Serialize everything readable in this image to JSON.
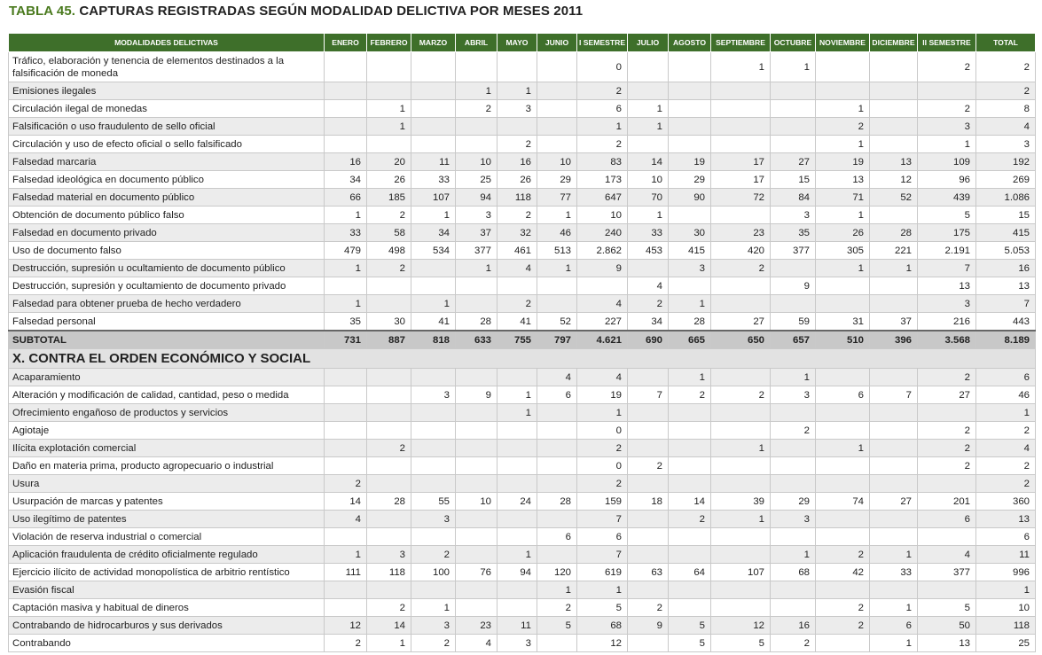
{
  "title": {
    "number": "TABLA 45.",
    "text": "CAPTURAS REGISTRADAS SEGÚN MODALIDAD DELICTIVA POR MESES 2011"
  },
  "columns": [
    "MODALIDADES DELICTIVAS",
    "ENERO",
    "FEBRERO",
    "MARZO",
    "ABRIL",
    "MAYO",
    "JUNIO",
    "I SEMESTRE",
    "JULIO",
    "AGOSTO",
    "SEPTIEMBRE",
    "OCTUBRE",
    "NOVIEMBRE",
    "DICIEMBRE",
    "II SEMESTRE",
    "TOTAL"
  ],
  "rows": [
    {
      "type": "data",
      "label": "Tráfico, elaboración y tenencia de elementos destinados a la falsificación de moneda",
      "values": [
        "",
        "",
        "",
        "",
        "",
        "",
        "0",
        "",
        "",
        "1",
        "1",
        "",
        "",
        "2",
        "2"
      ]
    },
    {
      "type": "data",
      "label": "Emisiones ilegales",
      "values": [
        "",
        "",
        "",
        "1",
        "1",
        "",
        "2",
        "",
        "",
        "",
        "",
        "",
        "",
        "",
        "2"
      ]
    },
    {
      "type": "data",
      "label": "Circulación ilegal de monedas",
      "values": [
        "",
        "1",
        "",
        "2",
        "3",
        "",
        "6",
        "1",
        "",
        "",
        "",
        "1",
        "",
        "2",
        "8"
      ]
    },
    {
      "type": "data",
      "label": "Falsificación o uso fraudulento de sello oficial",
      "values": [
        "",
        "1",
        "",
        "",
        "",
        "",
        "1",
        "1",
        "",
        "",
        "",
        "2",
        "",
        "3",
        "4"
      ]
    },
    {
      "type": "data",
      "label": "Circulación y uso de efecto oficial o sello falsificado",
      "values": [
        "",
        "",
        "",
        "",
        "2",
        "",
        "2",
        "",
        "",
        "",
        "",
        "1",
        "",
        "1",
        "3"
      ]
    },
    {
      "type": "data",
      "label": "Falsedad marcaria",
      "values": [
        "16",
        "20",
        "11",
        "10",
        "16",
        "10",
        "83",
        "14",
        "19",
        "17",
        "27",
        "19",
        "13",
        "109",
        "192"
      ]
    },
    {
      "type": "data",
      "label": "Falsedad ideológica en documento público",
      "values": [
        "34",
        "26",
        "33",
        "25",
        "26",
        "29",
        "173",
        "10",
        "29",
        "17",
        "15",
        "13",
        "12",
        "96",
        "269"
      ]
    },
    {
      "type": "data",
      "label": "Falsedad material en documento público",
      "values": [
        "66",
        "185",
        "107",
        "94",
        "118",
        "77",
        "647",
        "70",
        "90",
        "72",
        "84",
        "71",
        "52",
        "439",
        "1.086"
      ]
    },
    {
      "type": "data",
      "label": "Obtención de documento público falso",
      "values": [
        "1",
        "2",
        "1",
        "3",
        "2",
        "1",
        "10",
        "1",
        "",
        "",
        "3",
        "1",
        "",
        "5",
        "15"
      ]
    },
    {
      "type": "data",
      "label": "Falsedad en documento privado",
      "values": [
        "33",
        "58",
        "34",
        "37",
        "32",
        "46",
        "240",
        "33",
        "30",
        "23",
        "35",
        "26",
        "28",
        "175",
        "415"
      ]
    },
    {
      "type": "data",
      "label": "Uso de documento falso",
      "values": [
        "479",
        "498",
        "534",
        "377",
        "461",
        "513",
        "2.862",
        "453",
        "415",
        "420",
        "377",
        "305",
        "221",
        "2.191",
        "5.053"
      ]
    },
    {
      "type": "data",
      "label": "Destrucción, supresión u ocultamiento de documento público",
      "values": [
        "1",
        "2",
        "",
        "1",
        "4",
        "1",
        "9",
        "",
        "3",
        "2",
        "",
        "1",
        "1",
        "7",
        "16"
      ]
    },
    {
      "type": "data",
      "label": "Destrucción, supresión y ocultamiento de documento privado",
      "values": [
        "",
        "",
        "",
        "",
        "",
        "",
        "",
        "4",
        "",
        "",
        "9",
        "",
        "",
        "13",
        "13"
      ]
    },
    {
      "type": "data",
      "label": "Falsedad para obtener prueba de hecho verdadero",
      "values": [
        "1",
        "",
        "1",
        "",
        "2",
        "",
        "4",
        "2",
        "1",
        "",
        "",
        "",
        "",
        "3",
        "7"
      ]
    },
    {
      "type": "data",
      "label": "Falsedad personal",
      "values": [
        "35",
        "30",
        "41",
        "28",
        "41",
        "52",
        "227",
        "34",
        "28",
        "27",
        "59",
        "31",
        "37",
        "216",
        "443"
      ]
    },
    {
      "type": "subtotal",
      "label": "SUBTOTAL",
      "values": [
        "731",
        "887",
        "818",
        "633",
        "755",
        "797",
        "4.621",
        "690",
        "665",
        "650",
        "657",
        "510",
        "396",
        "3.568",
        "8.189"
      ]
    },
    {
      "type": "section",
      "label": "X. CONTRA EL ORDEN ECONÓMICO Y SOCIAL"
    },
    {
      "type": "data",
      "label": "Acaparamiento",
      "values": [
        "",
        "",
        "",
        "",
        "",
        "4",
        "4",
        "",
        "1",
        "",
        "1",
        "",
        "",
        "2",
        "6"
      ]
    },
    {
      "type": "data",
      "label": "Alteración y modificación de calidad, cantidad, peso o medida",
      "values": [
        "",
        "",
        "3",
        "9",
        "1",
        "6",
        "19",
        "7",
        "2",
        "2",
        "3",
        "6",
        "7",
        "27",
        "46"
      ]
    },
    {
      "type": "data",
      "label": "Ofrecimiento engañoso de productos y servicios",
      "values": [
        "",
        "",
        "",
        "",
        "1",
        "",
        "1",
        "",
        "",
        "",
        "",
        "",
        "",
        "",
        "1"
      ]
    },
    {
      "type": "data",
      "label": "Agiotaje",
      "values": [
        "",
        "",
        "",
        "",
        "",
        "",
        "0",
        "",
        "",
        "",
        "2",
        "",
        "",
        "2",
        "2"
      ]
    },
    {
      "type": "data",
      "label": "Ilícita explotación comercial",
      "values": [
        "",
        "2",
        "",
        "",
        "",
        "",
        "2",
        "",
        "",
        "1",
        "",
        "1",
        "",
        "2",
        "4"
      ]
    },
    {
      "type": "data",
      "label": "Daño en materia prima, producto agropecuario o industrial",
      "values": [
        "",
        "",
        "",
        "",
        "",
        "",
        "0",
        "2",
        "",
        "",
        "",
        "",
        "",
        "2",
        "2"
      ]
    },
    {
      "type": "data",
      "label": "Usura",
      "values": [
        "2",
        "",
        "",
        "",
        "",
        "",
        "2",
        "",
        "",
        "",
        "",
        "",
        "",
        "",
        "2"
      ]
    },
    {
      "type": "data",
      "label": "Usurpación de marcas y patentes",
      "values": [
        "14",
        "28",
        "55",
        "10",
        "24",
        "28",
        "159",
        "18",
        "14",
        "39",
        "29",
        "74",
        "27",
        "201",
        "360"
      ]
    },
    {
      "type": "data",
      "label": "Uso ilegítimo de patentes",
      "values": [
        "4",
        "",
        "3",
        "",
        "",
        "",
        "7",
        "",
        "2",
        "1",
        "3",
        "",
        "",
        "6",
        "13"
      ]
    },
    {
      "type": "data",
      "label": "Violación de reserva industrial o comercial",
      "values": [
        "",
        "",
        "",
        "",
        "",
        "6",
        "6",
        "",
        "",
        "",
        "",
        "",
        "",
        "",
        "6"
      ]
    },
    {
      "type": "data",
      "label": "Aplicación fraudulenta de crédito oficialmente regulado",
      "values": [
        "1",
        "3",
        "2",
        "",
        "1",
        "",
        "7",
        "",
        "",
        "",
        "1",
        "2",
        "1",
        "4",
        "11"
      ]
    },
    {
      "type": "data",
      "label": "Ejercicio ilícito de actividad monopolística de arbitrio rentístico",
      "values": [
        "111",
        "118",
        "100",
        "76",
        "94",
        "120",
        "619",
        "63",
        "64",
        "107",
        "68",
        "42",
        "33",
        "377",
        "996"
      ]
    },
    {
      "type": "data",
      "label": "Evasión fiscal",
      "values": [
        "",
        "",
        "",
        "",
        "",
        "1",
        "1",
        "",
        "",
        "",
        "",
        "",
        "",
        "",
        "1"
      ]
    },
    {
      "type": "data",
      "label": "Captación masiva y habitual de dineros",
      "values": [
        "",
        "2",
        "1",
        "",
        "",
        "2",
        "5",
        "2",
        "",
        "",
        "",
        "2",
        "1",
        "5",
        "10"
      ]
    },
    {
      "type": "data",
      "label": "Contrabando de hidrocarburos y sus derivados",
      "values": [
        "12",
        "14",
        "3",
        "23",
        "11",
        "5",
        "68",
        "9",
        "5",
        "12",
        "16",
        "2",
        "6",
        "50",
        "118"
      ]
    },
    {
      "type": "data",
      "label": "Contrabando",
      "values": [
        "2",
        "1",
        "2",
        "4",
        "3",
        "",
        "12",
        "",
        "5",
        "5",
        "2",
        "",
        "1",
        "13",
        "25"
      ]
    }
  ]
}
